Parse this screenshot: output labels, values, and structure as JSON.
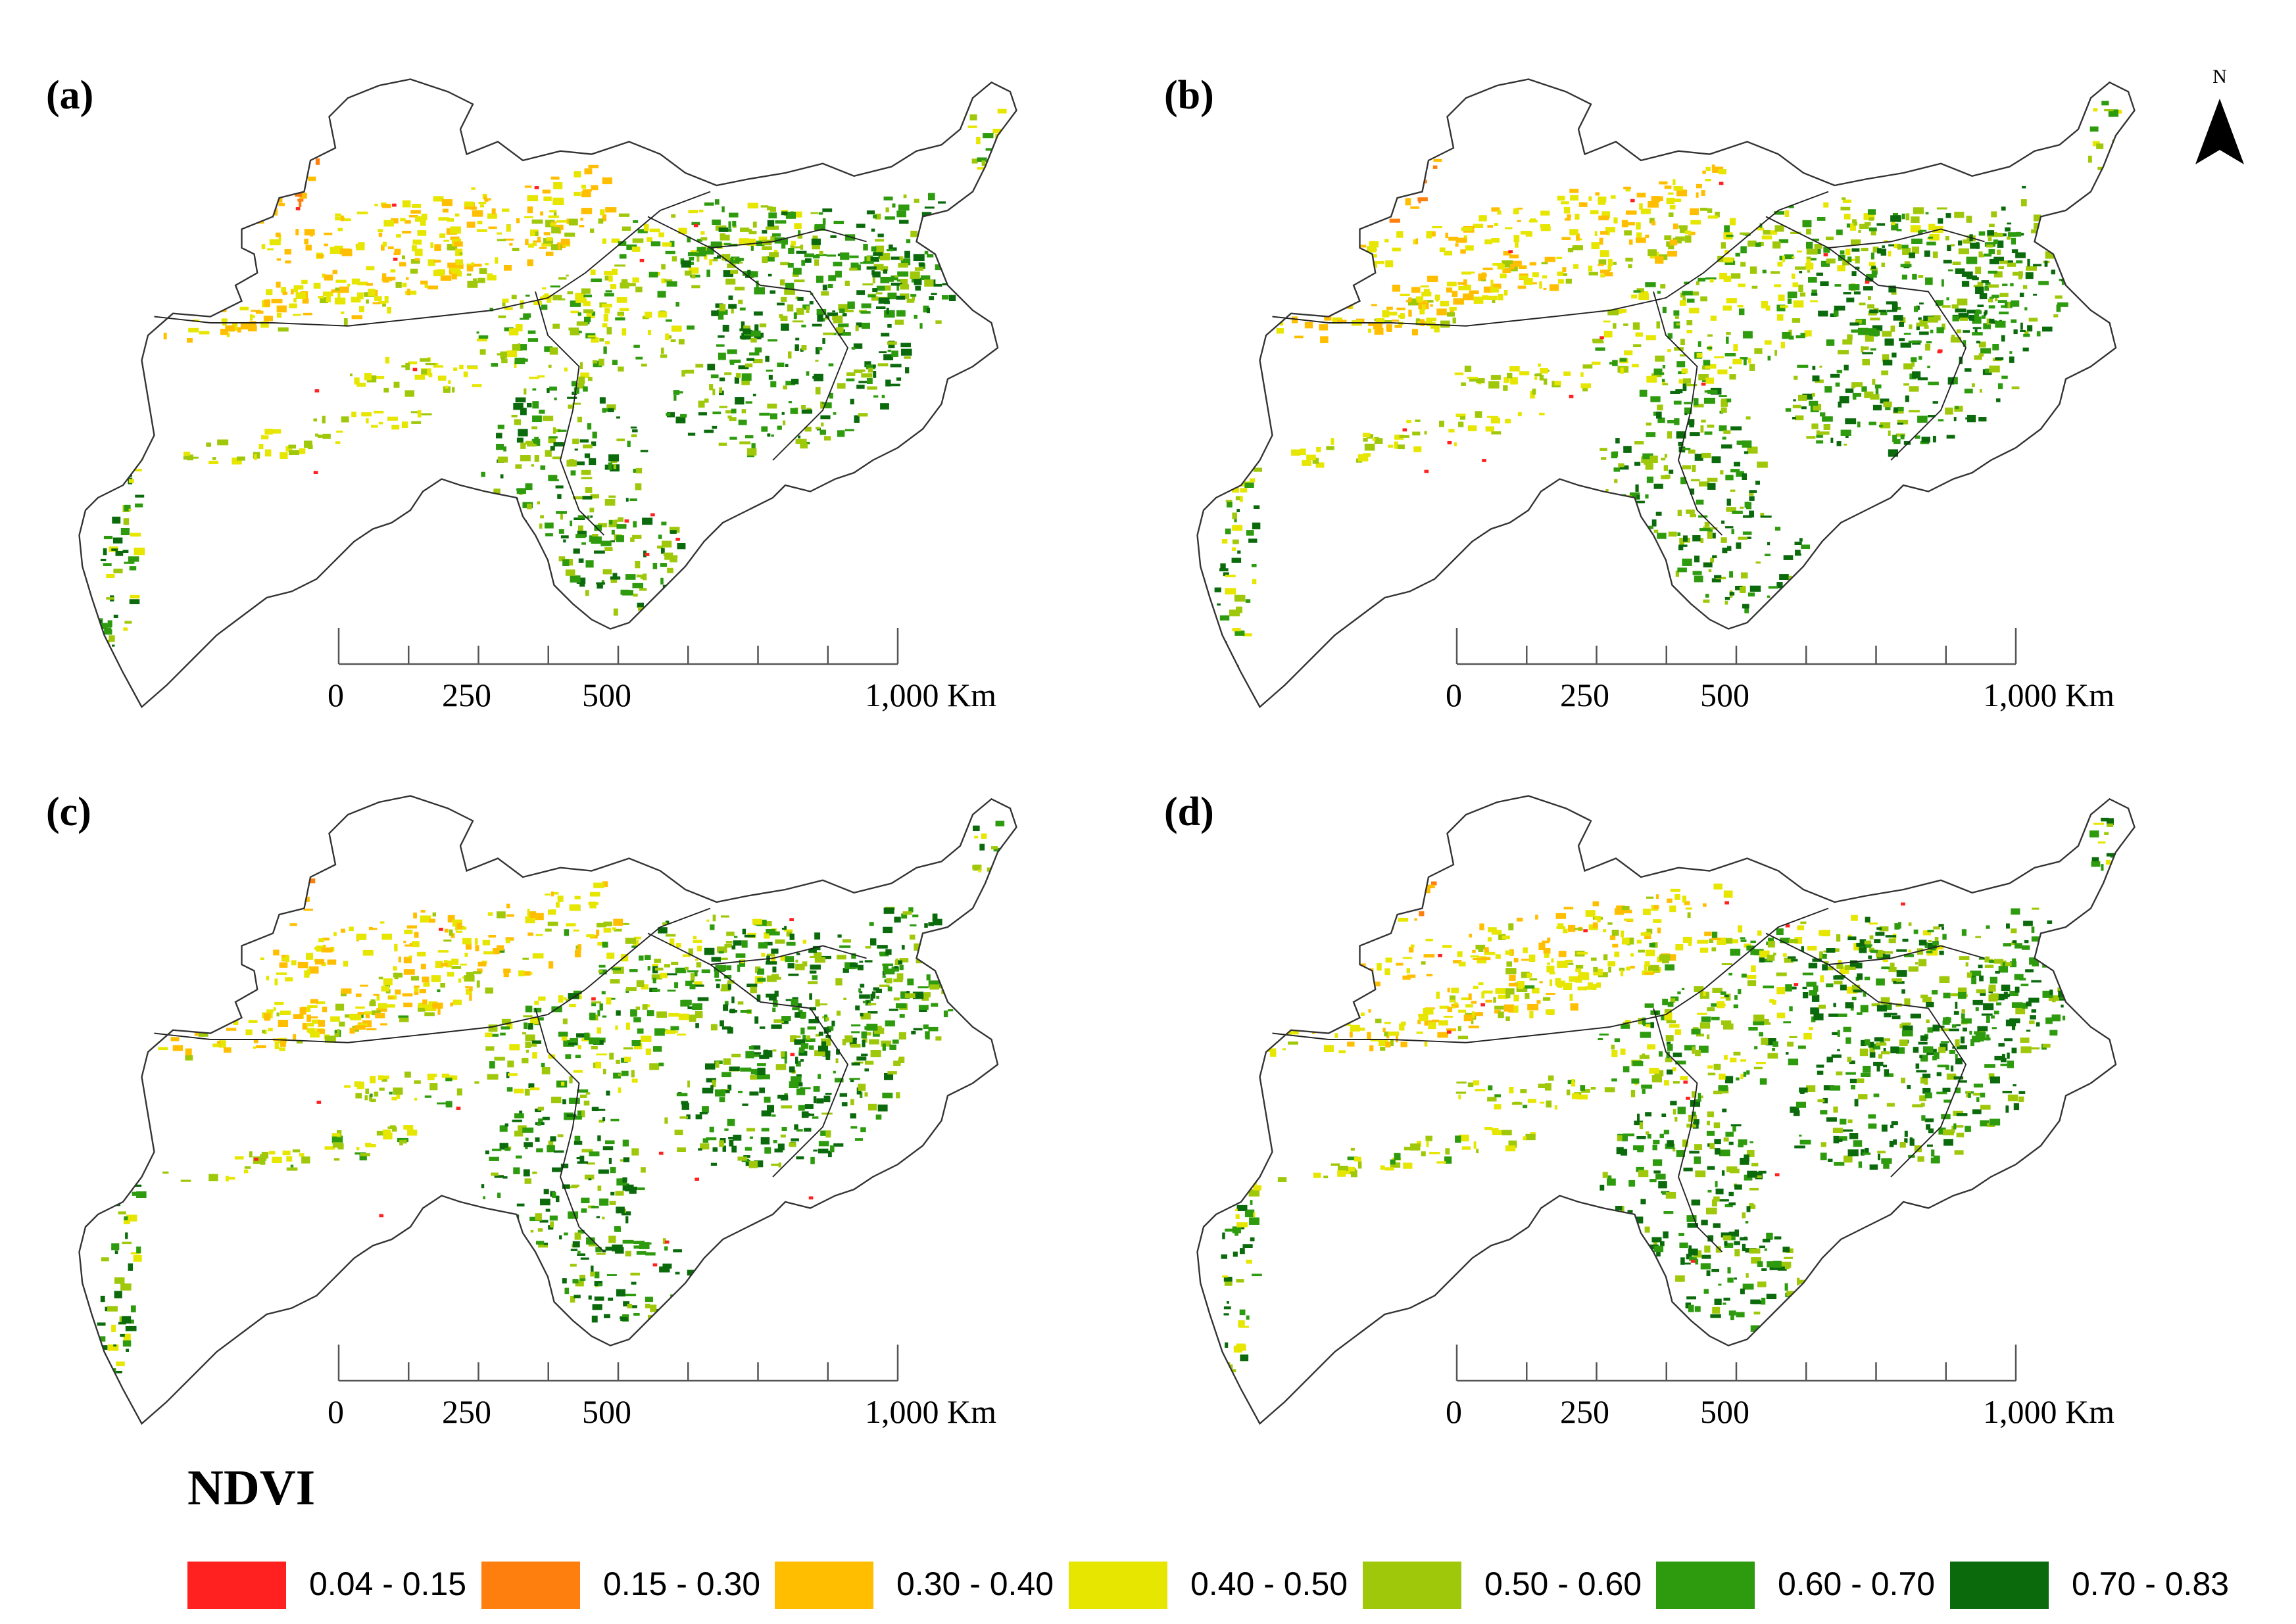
{
  "panels": [
    {
      "id": "a",
      "label": "(a)",
      "variant": 0
    },
    {
      "id": "b",
      "label": "(b)",
      "variant": 1
    },
    {
      "id": "c",
      "label": "(c)",
      "variant": 2
    },
    {
      "id": "d",
      "label": "(d)",
      "variant": 3
    }
  ],
  "scale_bar": {
    "labels": [
      "0",
      "250",
      "500",
      "1,000 Km"
    ],
    "values_km": [
      0,
      250,
      500,
      1000
    ]
  },
  "north_arrow": {
    "letter": "N"
  },
  "legend": {
    "title": "NDVI",
    "classes": [
      {
        "label": "0.04 - 0.15",
        "color": "#ff2020"
      },
      {
        "label": "0.15 - 0.30",
        "color": "#ff7f0e"
      },
      {
        "label": "0.30 - 0.40",
        "color": "#ffbf00"
      },
      {
        "label": "0.40 - 0.50",
        "color": "#e6e600"
      },
      {
        "label": "0.50 - 0.60",
        "color": "#a0c80a"
      },
      {
        "label": "0.60 - 0.70",
        "color": "#2e9b0f"
      },
      {
        "label": "0.70 - 0.83",
        "color": "#0b6a0b"
      }
    ]
  }
}
